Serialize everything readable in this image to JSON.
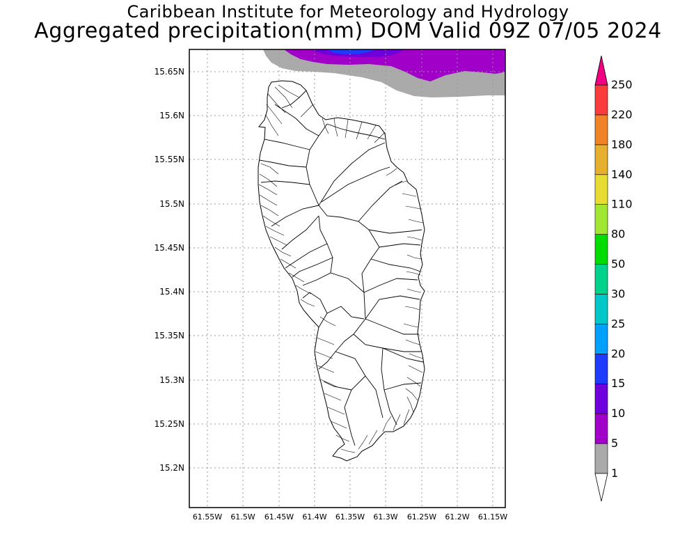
{
  "header": {
    "line1": "Caribbean Institute for Meteorology and Hydrology",
    "line2": "Aggregated precipitation(mm) DOM Valid 09Z 07/05 2024"
  },
  "map": {
    "lat_ticks": [
      "15.65N",
      "15.6N",
      "15.55N",
      "15.5N",
      "15.45N",
      "15.4N",
      "15.35N",
      "15.3N",
      "15.25N",
      "15.2N"
    ],
    "lon_ticks": [
      "61.55W",
      "61.5W",
      "61.45W",
      "61.4W",
      "61.35W",
      "61.3W",
      "61.25W",
      "61.2W",
      "61.15W"
    ],
    "grid": true,
    "precip_region": "northern edge, offshore"
  },
  "colorbar": {
    "levels": [
      "1",
      "5",
      "10",
      "15",
      "20",
      "25",
      "30",
      "50",
      "80",
      "110",
      "140",
      "180",
      "220",
      "250"
    ],
    "colors": [
      "#aaaaaa",
      "#a000c8",
      "#6e00dc",
      "#1e3cff",
      "#00a0ff",
      "#00c8c8",
      "#00d28c",
      "#00dc00",
      "#a0e632",
      "#e6dc32",
      "#e6af2d",
      "#f08228",
      "#fa3c3c",
      "#f00082"
    ]
  }
}
